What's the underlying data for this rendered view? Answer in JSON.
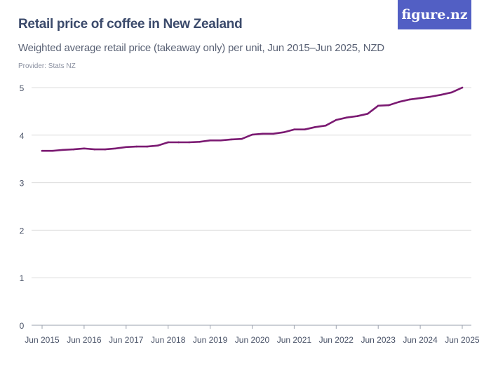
{
  "title": "Retail price of coffee in New Zealand",
  "subtitle": "Weighted average retail price (takeaway only) per unit, Jun 2015–Jun 2025, NZD",
  "provider": "Provider: Stats NZ",
  "logo": "figure.nz",
  "colors": {
    "line": "#7b1a72",
    "logo_bg": "#525fc4",
    "title": "#3b4a6b"
  },
  "chart_data": {
    "type": "line",
    "title": "Retail price of coffee in New Zealand",
    "ylim": [
      0,
      5
    ],
    "yticks": [
      "0",
      "1",
      "2",
      "3",
      "4",
      "5"
    ],
    "xticks": [
      "Jun 2015",
      "Jun 2016",
      "Jun 2017",
      "Jun 2018",
      "Jun 2019",
      "Jun 2020",
      "Jun 2021",
      "Jun 2022",
      "Jun 2023",
      "Jun 2024",
      "Jun 2025"
    ],
    "grid": true,
    "x": [
      "Jun 2015",
      "Sep 2015",
      "Dec 2015",
      "Mar 2016",
      "Jun 2016",
      "Sep 2016",
      "Dec 2016",
      "Mar 2017",
      "Jun 2017",
      "Sep 2017",
      "Dec 2017",
      "Mar 2018",
      "Jun 2018",
      "Sep 2018",
      "Dec 2018",
      "Mar 2019",
      "Jun 2019",
      "Sep 2019",
      "Dec 2019",
      "Mar 2020",
      "Jun 2020",
      "Sep 2020",
      "Dec 2020",
      "Mar 2021",
      "Jun 2021",
      "Sep 2021",
      "Dec 2021",
      "Mar 2022",
      "Jun 2022",
      "Sep 2022",
      "Dec 2022",
      "Mar 2023",
      "Jun 2023",
      "Sep 2023",
      "Dec 2023",
      "Mar 2024",
      "Jun 2024",
      "Sep 2024",
      "Dec 2024",
      "Mar 2025",
      "Jun 2025"
    ],
    "values": [
      3.67,
      3.67,
      3.69,
      3.7,
      3.72,
      3.7,
      3.7,
      3.72,
      3.75,
      3.76,
      3.76,
      3.78,
      3.85,
      3.85,
      3.85,
      3.86,
      3.89,
      3.89,
      3.91,
      3.92,
      4.01,
      4.03,
      4.03,
      4.06,
      4.12,
      4.12,
      4.17,
      4.2,
      4.32,
      4.37,
      4.4,
      4.45,
      4.62,
      4.63,
      4.7,
      4.75,
      4.78,
      4.81,
      4.85,
      4.9,
      5.0
    ]
  }
}
